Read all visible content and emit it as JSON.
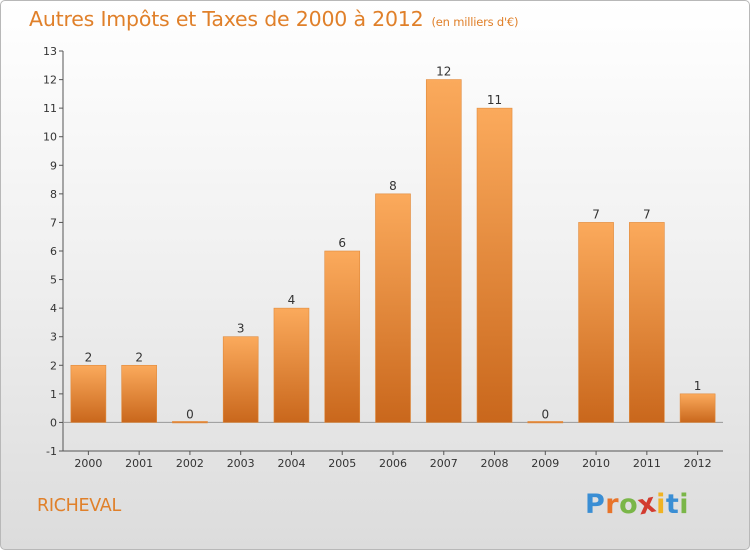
{
  "title": {
    "main": "Autres Impôts et Taxes de 2000 à 2012",
    "unit": "(en milliers d'€)"
  },
  "commune": "RICHEVAL",
  "brand": {
    "letters": [
      "P",
      "r",
      "o",
      "x",
      "i",
      "t",
      "i"
    ],
    "colors": [
      "#3a8ed4",
      "#e8742a",
      "#7ab648",
      "#d23b2f",
      "#f0b323",
      "#3a8ed4",
      "#7ab648"
    ]
  },
  "colors": {
    "bar_light": "#fbaa5c",
    "bar_dark": "#c9671c",
    "text": "#e0802a"
  },
  "chart_data": {
    "type": "bar",
    "title": "Autres Impôts et Taxes de 2000 à 2012",
    "subtitle": "(en milliers d'€)",
    "categories": [
      "2000",
      "2001",
      "2002",
      "2003",
      "2004",
      "2005",
      "2006",
      "2007",
      "2008",
      "2009",
      "2010",
      "2011",
      "2012"
    ],
    "values": [
      2,
      2,
      0,
      3,
      4,
      6,
      8,
      12,
      11,
      0,
      7,
      7,
      1
    ],
    "ylim": [
      -1,
      13
    ],
    "yticks": [
      -1,
      0,
      1,
      2,
      3,
      4,
      5,
      6,
      7,
      8,
      9,
      10,
      11,
      12,
      13
    ],
    "grid": false,
    "legend": "none"
  }
}
